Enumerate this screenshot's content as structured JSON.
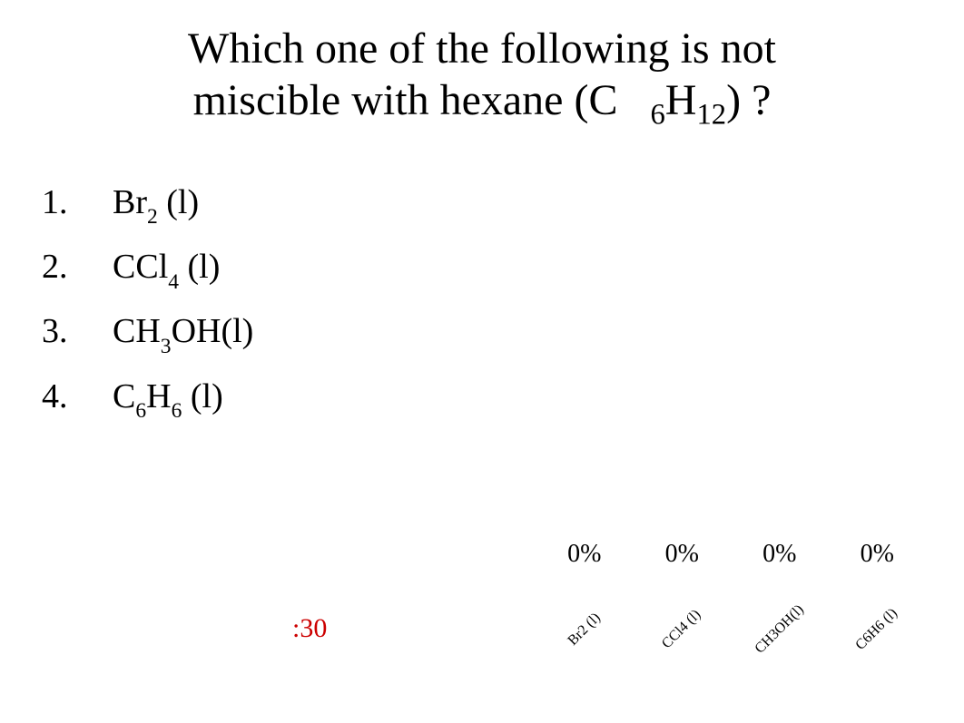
{
  "title": {
    "line1": "Which one of the following is not",
    "line2_pre": "miscible with hexane (C",
    "line2_sub1": "6",
    "line2_mid": "H",
    "line2_sub2": "12",
    "line2_post": ") ?"
  },
  "options": [
    {
      "num": "1.",
      "p1": "Br",
      "s1": "2",
      "p2": " (l)",
      "s2": "",
      "p3": ""
    },
    {
      "num": "2.",
      "p1": "CCl",
      "s1": "4",
      "p2": " (l)",
      "s2": "",
      "p3": ""
    },
    {
      "num": "3.",
      "p1": "CH",
      "s1": "3",
      "p2": "OH(l)",
      "s2": "",
      "p3": ""
    },
    {
      "num": "4.",
      "p1": "C",
      "s1": "6",
      "p2": "H",
      "s2": "6",
      "p3": " (l)"
    }
  ],
  "timer": ":30",
  "chart": {
    "type": "bar",
    "values": [
      0,
      0,
      0,
      0
    ],
    "percent_labels": [
      "0%",
      "0%",
      "0%",
      "0%"
    ],
    "x_labels": [
      "Br2 (l)",
      "CCl4 (l)",
      "CH3OH(l)",
      "C6H6 (l)"
    ],
    "pct_fontsize": 28,
    "xlabel_fontsize": 16,
    "xlabel_rotation_deg": -45,
    "bar_color": "#4472c4",
    "background_color": "#ffffff",
    "text_color": "#000000",
    "ylim": [
      0,
      100
    ]
  },
  "colors": {
    "text": "#000000",
    "timer": "#cc0000",
    "background": "#ffffff"
  },
  "typography": {
    "title_fontsize": 48,
    "option_fontsize": 38,
    "timer_fontsize": 30,
    "font_family": "Times New Roman"
  }
}
